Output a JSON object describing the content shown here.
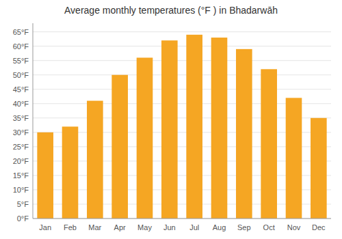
{
  "chart_data": {
    "type": "bar",
    "title": "Average monthly temperatures (°F ) in Bhadarwāh",
    "categories": [
      "Jan",
      "Feb",
      "Mar",
      "Apr",
      "May",
      "Jun",
      "Jul",
      "Aug",
      "Sep",
      "Oct",
      "Nov",
      "Dec"
    ],
    "values": [
      30,
      32,
      41,
      50,
      56,
      62,
      64,
      63,
      59,
      52,
      42,
      35
    ],
    "color": "#F5A623",
    "ylim": [
      0,
      68
    ],
    "yticks": [
      {
        "value": 0,
        "label": "0°F"
      },
      {
        "value": 5,
        "label": "5°F"
      },
      {
        "value": 10,
        "label": "10°F"
      },
      {
        "value": 15,
        "label": "15°F"
      },
      {
        "value": 20,
        "label": "20°F"
      },
      {
        "value": 25,
        "label": "25°F"
      },
      {
        "value": 30,
        "label": "30°F"
      },
      {
        "value": 35,
        "label": "35°F"
      },
      {
        "value": 40,
        "label": "40°F"
      },
      {
        "value": 45,
        "label": "45°F"
      },
      {
        "value": 50,
        "label": "50°F"
      },
      {
        "value": 55,
        "label": "55°F"
      },
      {
        "value": 60,
        "label": "60°F"
      },
      {
        "value": 65,
        "label": "65°F"
      }
    ],
    "grid": true
  }
}
